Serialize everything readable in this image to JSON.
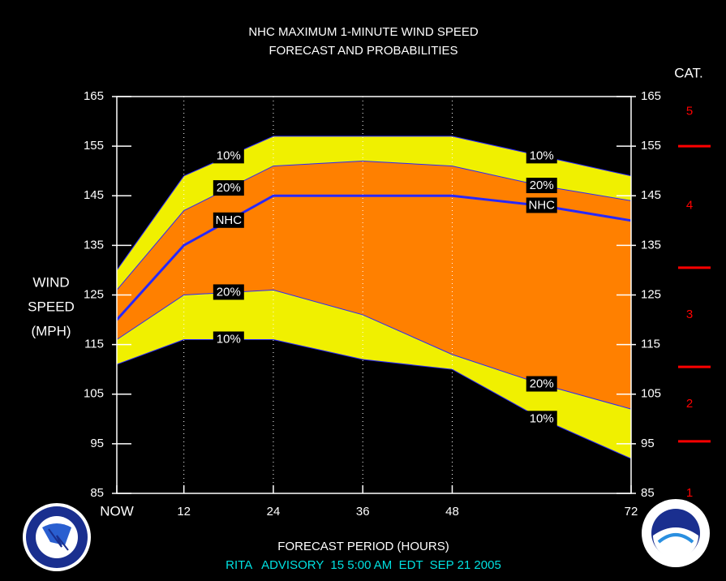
{
  "chart_data": {
    "type": "band",
    "title": "NHC MAXIMUM 1-MINUTE WIND SPEED",
    "subtitle": "FORECAST AND PROBABILITIES",
    "ylabel": [
      "WIND",
      "SPEED",
      "(MPH)"
    ],
    "xlabel": "FORECAST PERIOD (HOURS)",
    "footer": "RITA   ADVISORY  15 5:00 AM  EDT  SEP 21 2005",
    "x": [
      3,
      12,
      24,
      36,
      48,
      60,
      72
    ],
    "xlim": [
      3,
      72
    ],
    "xticks": [
      {
        "value": 3,
        "label": "NOW"
      },
      12,
      24,
      36,
      48,
      72
    ],
    "ylim": [
      85,
      165
    ],
    "yticks": [
      85,
      95,
      105,
      115,
      125,
      135,
      145,
      155,
      165
    ],
    "series": [
      {
        "name": "10%",
        "color": "#f0f000",
        "values": [
          130,
          149,
          157,
          157,
          157,
          153,
          149
        ]
      },
      {
        "name": "20%",
        "color": "#ff8000",
        "values": [
          126,
          142,
          151,
          152,
          151,
          147,
          144
        ]
      },
      {
        "name": "NHC",
        "color": "#2828ff",
        "values": [
          120,
          135,
          145,
          145,
          145,
          143,
          140
        ]
      },
      {
        "name": "20%",
        "color": "#ff8000",
        "values": [
          116,
          125,
          126,
          121,
          113,
          107,
          102
        ]
      },
      {
        "name": "10%",
        "color": "#f0f000",
        "values": [
          111,
          116,
          116,
          112,
          110,
          100,
          92
        ]
      }
    ],
    "category_title": "CAT.",
    "category_color": "#ff0000",
    "category_labels": [
      {
        "value": 85,
        "label": "1"
      },
      {
        "value": 103,
        "label": "2"
      },
      {
        "value": 121,
        "label": "3"
      },
      {
        "value": 143,
        "label": "4"
      },
      {
        "value": 162,
        "label": "5"
      }
    ],
    "category_boundaries": [
      95.5,
      110.5,
      130.5,
      155
    ]
  }
}
